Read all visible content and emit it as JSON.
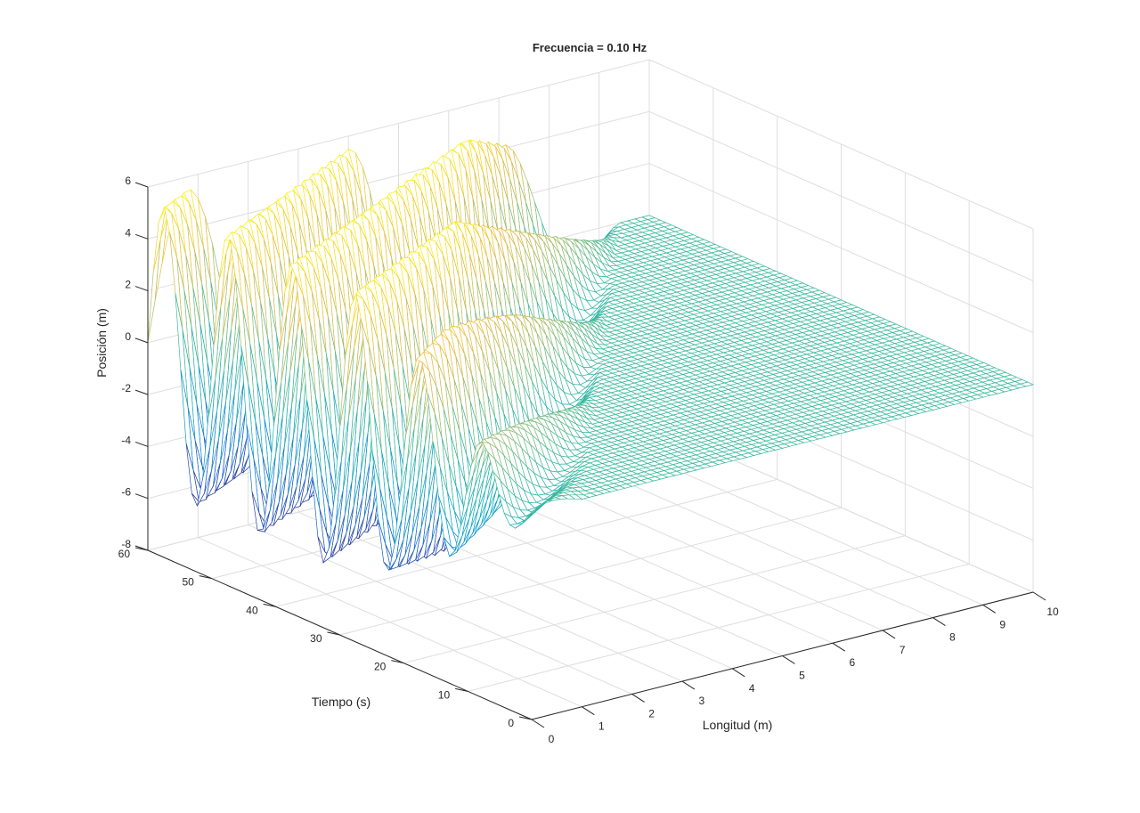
{
  "chart_data": {
    "type": "surface-mesh",
    "title": "Frecuencia = 0.10 Hz",
    "xlabel": "Longitud (m)",
    "ylabel": "Tiempo (s)",
    "zlabel": "Posición (m)",
    "xlim": [
      0,
      10
    ],
    "ylim": [
      0,
      60
    ],
    "zlim": [
      -8,
      6
    ],
    "xticks": [
      "0",
      "1",
      "2",
      "3",
      "4",
      "5",
      "6",
      "7",
      "8",
      "9",
      "10"
    ],
    "yticks": [
      "0",
      "10",
      "20",
      "30",
      "40",
      "50",
      "60"
    ],
    "zticks": [
      "-8",
      "-6",
      "-4",
      "-2",
      "0",
      "2",
      "4",
      "6"
    ],
    "grid": true,
    "frequency_hz": 0.1,
    "amplitude_max": 5.5,
    "amplitude_min": -5.5,
    "colormap": [
      "#352a87",
      "#0f6ed9",
      "#07a9c2",
      "#37b89d",
      "#a5be6a",
      "#f0b93a",
      "#f9fb0e"
    ]
  }
}
